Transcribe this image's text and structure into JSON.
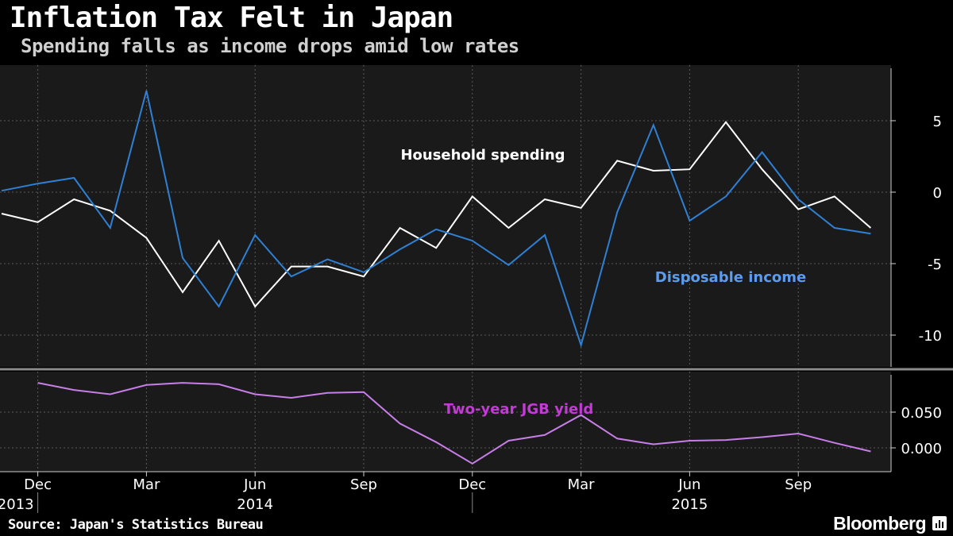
{
  "header": {
    "title": "Inflation Tax Felt in Japan",
    "subtitle": "Spending falls as income drops amid low rates"
  },
  "footer": {
    "source": "Source: Japan's Statistics Bureau",
    "brand": "Bloomberg"
  },
  "colors": {
    "background": "#000000",
    "panel": "#1a1a1a",
    "household_spending": "#ffffff",
    "disposable_income": "#2f80d4",
    "disposable_income_label": "#5b9bf0",
    "jgb_yield": "#c77ee8",
    "jgb_yield_label": "#c43ad6"
  },
  "chart_data": [
    {
      "type": "line",
      "panel": "top",
      "x": [
        "2013-11",
        "2013-12",
        "2014-01",
        "2014-02",
        "2014-03",
        "2014-04",
        "2014-05",
        "2014-06",
        "2014-07",
        "2014-08",
        "2014-09",
        "2014-10",
        "2014-11",
        "2014-12",
        "2015-01",
        "2015-02",
        "2015-03",
        "2015-04",
        "2015-05",
        "2015-06",
        "2015-07",
        "2015-08",
        "2015-09",
        "2015-10",
        "2015-11"
      ],
      "series": [
        {
          "name": "Household spending",
          "color": "#ffffff",
          "values": [
            -1.5,
            -2.1,
            -0.5,
            -1.3,
            -3.2,
            -7.0,
            -3.4,
            -8.0,
            -5.2,
            -5.2,
            -5.9,
            -2.5,
            -3.9,
            -0.3,
            -2.5,
            -0.5,
            -1.1,
            2.2,
            1.5,
            1.6,
            4.9,
            1.6,
            -1.2,
            -0.3,
            -2.5
          ]
        },
        {
          "name": "Disposable income",
          "color": "#2f80d4",
          "values": [
            0.1,
            0.6,
            1.0,
            -2.5,
            7.1,
            -4.6,
            -8.0,
            -3.0,
            -5.9,
            -4.7,
            -5.6,
            -4.0,
            -2.6,
            -3.4,
            -5.1,
            -3.0,
            -10.7,
            -1.4,
            4.7,
            -2.0,
            -0.3,
            2.8,
            -0.5,
            -2.5,
            -2.9
          ]
        }
      ],
      "ylim": [
        -12,
        8.5
      ],
      "yticks": [
        5,
        0,
        -5,
        -10
      ],
      "ytick_labels": [
        "5",
        "0",
        "-5",
        "-10"
      ],
      "grid": true,
      "annotations": [
        "Household spending",
        "Disposable income"
      ]
    },
    {
      "type": "line",
      "panel": "bottom",
      "x": [
        "2013-12",
        "2014-01",
        "2014-02",
        "2014-03",
        "2014-04",
        "2014-05",
        "2014-06",
        "2014-07",
        "2014-08",
        "2014-09",
        "2014-10",
        "2014-11",
        "2014-12",
        "2015-01",
        "2015-02",
        "2015-03",
        "2015-04",
        "2015-05",
        "2015-06",
        "2015-07",
        "2015-08",
        "2015-09",
        "2015-10",
        "2015-11"
      ],
      "series": [
        {
          "name": "Two-year JGB yield",
          "color": "#c77ee8",
          "values": [
            0.091,
            0.081,
            0.075,
            0.088,
            0.091,
            0.089,
            0.075,
            0.07,
            0.077,
            0.078,
            0.034,
            0.008,
            -0.022,
            0.01,
            0.018,
            0.046,
            0.013,
            0.005,
            0.01,
            0.011,
            0.015,
            0.02,
            0.007,
            -0.005
          ]
        }
      ],
      "ylim": [
        -0.03,
        0.1
      ],
      "yticks": [
        0.05,
        0.0
      ],
      "ytick_labels": [
        "0.050",
        "0.000"
      ],
      "grid": true,
      "annotations": [
        "Two-year JGB yield"
      ]
    }
  ],
  "x_axis": {
    "month_labels": [
      {
        "month": "2013-12",
        "label": "Dec"
      },
      {
        "month": "2014-03",
        "label": "Mar"
      },
      {
        "month": "2014-06",
        "label": "Jun"
      },
      {
        "month": "2014-09",
        "label": "Sep"
      },
      {
        "month": "2014-12",
        "label": "Dec"
      },
      {
        "month": "2015-03",
        "label": "Mar"
      },
      {
        "month": "2015-06",
        "label": "Jun"
      },
      {
        "month": "2015-09",
        "label": "Sep"
      }
    ],
    "year_labels": [
      {
        "month": "2013-12",
        "label": "2013",
        "align": "end"
      },
      {
        "month": "2014-06",
        "label": "2014",
        "align": "middle"
      },
      {
        "month": "2015-06",
        "label": "2015",
        "align": "middle"
      }
    ],
    "year_dividers": [
      "2013-12",
      "2014-12"
    ]
  }
}
